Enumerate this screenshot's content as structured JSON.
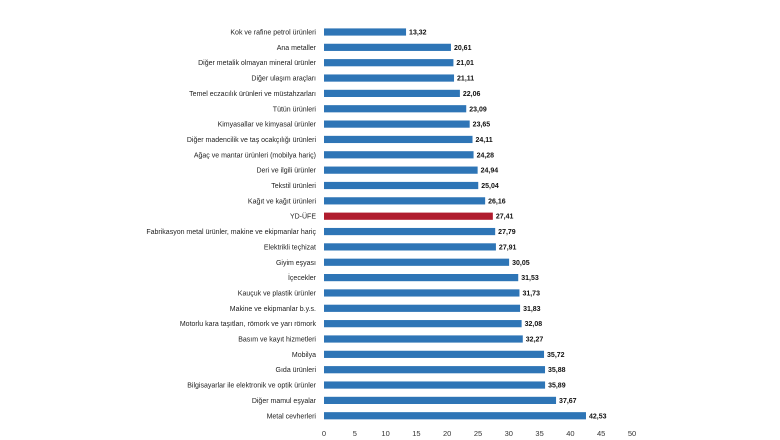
{
  "chart_data": {
    "type": "bar",
    "orientation": "horizontal",
    "title": "",
    "xlabel": "",
    "ylabel": "",
    "xlim": [
      0,
      50
    ],
    "xticks": [
      0,
      5,
      10,
      15,
      20,
      25,
      30,
      35,
      40,
      45,
      50
    ],
    "grid": false,
    "legend": "none",
    "bar_color": "#2e75b6",
    "highlight_color": "#b01c2e",
    "highlight_category": "YD-ÜFE",
    "categories": [
      "Kok ve rafine petrol ürünleri",
      "Ana metaller",
      "Diğer metalik olmayan mineral ürünler",
      "Diğer ulaşım araçları",
      "Temel eczacılık ürünleri ve müstahzarları",
      "Tütün ürünleri",
      "Kimyasallar ve kimyasal ürünler",
      "Diğer madencilik ve taş ocakçılığı ürünleri",
      "Ağaç ve mantar ürünleri (mobilya hariç)",
      "Deri ve ilgili ürünler",
      "Tekstil ürünleri",
      "Kağıt ve kağıt ürünleri",
      "YD-ÜFE",
      "Fabrikasyon metal ürünler, makine ve ekipmanlar hariç",
      "Elektrikli teçhizat",
      "Giyim eşyası",
      "İçecekler",
      "Kauçuk ve plastik ürünler",
      "Makine ve ekipmanlar b.y.s.",
      "Motorlu kara taşıtları, römork ve yarı römork",
      "Basım ve kayıt hizmetleri",
      "Mobilya",
      "Gıda ürünleri",
      "Bilgisayarlar ile elektronik ve optik ürünler",
      "Diğer mamul eşyalar",
      "Metal cevherleri"
    ],
    "values": [
      13.32,
      20.61,
      21.01,
      21.11,
      22.06,
      23.09,
      23.65,
      24.11,
      24.28,
      24.94,
      25.04,
      26.16,
      27.41,
      27.79,
      27.91,
      30.05,
      31.53,
      31.73,
      31.83,
      32.08,
      32.27,
      35.72,
      35.88,
      35.89,
      37.67,
      42.53
    ],
    "value_labels": [
      "13,32",
      "20,61",
      "21,01",
      "21,11",
      "22,06",
      "23,09",
      "23,65",
      "24,11",
      "24,28",
      "24,94",
      "25,04",
      "26,16",
      "27,41",
      "27,79",
      "27,91",
      "30,05",
      "31,53",
      "31,73",
      "31,83",
      "32,08",
      "32,27",
      "35,72",
      "35,88",
      "35,89",
      "37,67",
      "42,53"
    ]
  }
}
